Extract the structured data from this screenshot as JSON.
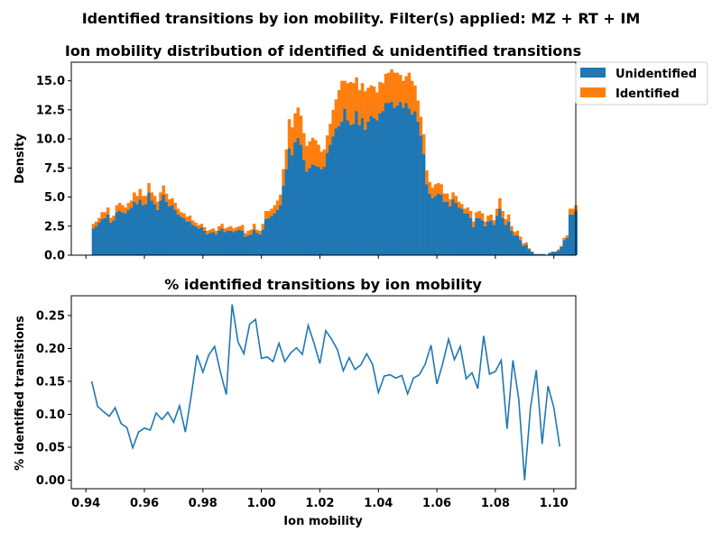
{
  "suptitle": "Identified transitions by ion mobility. Filter(s) applied: MZ + RT + IM",
  "colors": {
    "unidentified": "#1f77b4",
    "identified": "#ff7f0e",
    "line": "#1f77b4"
  },
  "chart_data": [
    {
      "type": "bar",
      "stacked": true,
      "title": "Ion mobility distribution of identified & unidentified transitions",
      "xlabel": "",
      "ylabel": "Density",
      "xlim": [
        0.935,
        1.1075
      ],
      "ylim": [
        0,
        16.6
      ],
      "yticks": [
        0.0,
        2.5,
        5.0,
        7.5,
        10.0,
        12.5,
        15.0
      ],
      "ytick_labels": [
        "0.0",
        "2.5",
        "5.0",
        "7.5",
        "10.0",
        "12.5",
        "15.0"
      ],
      "xticks": [
        0.94,
        0.96,
        0.98,
        1.0,
        1.02,
        1.04,
        1.06,
        1.08,
        1.1
      ],
      "xticks_labeled": false,
      "legend": "top-right outside",
      "bin_start": 0.942,
      "bin_width": 0.001,
      "series": [
        {
          "name": "Unidentified",
          "color_key": "unidentified",
          "values": [
            2.3,
            2.5,
            2.8,
            3.1,
            3.2,
            3.5,
            2.8,
            3.0,
            3.7,
            3.8,
            3.7,
            3.6,
            3.9,
            4.1,
            4.6,
            4.4,
            4.8,
            4.3,
            4.4,
            5.4,
            4.7,
            4.4,
            3.9,
            4.7,
            5.2,
            4.6,
            4.2,
            4.3,
            3.9,
            3.5,
            3.3,
            3.2,
            2.9,
            2.9,
            2.6,
            2.5,
            2.3,
            2.4,
            2.1,
            1.8,
            1.9,
            2.0,
            1.8,
            2.1,
            2.3,
            2.0,
            2.1,
            2.1,
            2.0,
            2.1,
            2.2,
            2.1,
            1.6,
            1.7,
            1.8,
            2.2,
            1.9,
            1.8,
            2.2,
            3.1,
            3.2,
            3.4,
            3.6,
            3.9,
            4.3,
            6.0,
            7.4,
            9.2,
            8.6,
            9.7,
            10.1,
            9.5,
            8.2,
            7.2,
            7.5,
            7.8,
            7.7,
            7.6,
            7.4,
            7.6,
            8.8,
            9.5,
            10.2,
            10.9,
            11.1,
            11.5,
            12.6,
            11.6,
            11.2,
            11.3,
            12.4,
            11.2,
            11.8,
            10.8,
            11.5,
            12.0,
            11.8,
            11.6,
            12.2,
            12.4,
            13.1,
            13.1,
            13.2,
            12.7,
            12.9,
            13.2,
            12.7,
            13.1,
            12.6,
            12.1,
            12.4,
            11.5,
            10.3,
            8.7,
            6.1,
            5.3,
            4.9,
            5.1,
            5.3,
            5.2,
            4.6,
            4.6,
            4.2,
            4.8,
            4.5,
            4.1,
            4.0,
            3.6,
            3.6,
            3.2,
            2.4,
            3.2,
            3.2,
            3.0,
            2.5,
            2.9,
            3.0,
            2.6,
            3.4,
            4.0,
            3.2,
            2.6,
            2.9,
            2.1,
            1.7,
            1.7,
            1.3,
            0.8,
            0.9,
            0.5,
            0.3,
            0.1,
            0.1,
            0.1,
            0.1,
            0.0,
            0.2,
            0.3,
            0.3,
            0.4,
            0.7,
            1.3,
            1.5,
            3.5,
            3.5,
            3.8
          ]
        },
        {
          "name": "Identified",
          "color_key": "identified",
          "values": [
            0.4,
            0.4,
            0.4,
            0.6,
            0.5,
            0.6,
            0.4,
            0.4,
            0.6,
            0.7,
            0.6,
            0.5,
            0.6,
            0.6,
            0.8,
            0.7,
            0.9,
            0.8,
            0.7,
            0.8,
            0.7,
            0.7,
            0.7,
            0.7,
            0.8,
            0.7,
            0.6,
            0.6,
            0.6,
            0.5,
            0.4,
            0.4,
            0.4,
            0.5,
            0.4,
            0.3,
            0.3,
            0.3,
            0.3,
            0.3,
            0.3,
            0.3,
            0.3,
            0.4,
            0.4,
            0.3,
            0.3,
            0.4,
            0.3,
            0.3,
            0.3,
            0.5,
            0.3,
            0.4,
            0.4,
            0.5,
            0.3,
            0.3,
            0.5,
            0.7,
            0.6,
            0.6,
            0.7,
            0.8,
            0.9,
            1.4,
            1.7,
            2.5,
            2.4,
            2.5,
            2.6,
            2.5,
            2.3,
            2.2,
            2.3,
            2.3,
            2.2,
            1.9,
            1.5,
            1.5,
            1.5,
            1.8,
            2.3,
            2.5,
            3.1,
            3.5,
            2.4,
            3.2,
            3.7,
            3.5,
            2.9,
            3.0,
            3.0,
            3.3,
            2.9,
            2.6,
            2.7,
            2.4,
            2.7,
            2.4,
            2.5,
            2.6,
            2.8,
            3.0,
            2.8,
            2.3,
            2.3,
            2.3,
            3.1,
            2.9,
            2.2,
            1.8,
            1.6,
            1.7,
            1.2,
            1.0,
            0.9,
            1.0,
            0.9,
            0.9,
            0.7,
            0.7,
            0.6,
            0.6,
            0.6,
            0.5,
            0.4,
            0.4,
            0.5,
            0.6,
            0.5,
            0.5,
            0.6,
            0.6,
            0.4,
            0.5,
            0.5,
            0.4,
            0.6,
            0.9,
            0.6,
            0.5,
            0.6,
            0.4,
            0.3,
            0.4,
            0.3,
            0.2,
            0.2,
            0.1,
            0.0,
            0.0,
            0.0,
            0.0,
            0.0,
            0.0,
            0.0,
            0.0,
            0.0,
            0.1,
            0.1,
            0.2,
            0.2,
            0.5,
            0.5,
            0.5
          ]
        }
      ]
    },
    {
      "type": "line",
      "title": "% identified transitions by ion mobility",
      "xlabel": "Ion mobility",
      "ylabel": "% identified transitions",
      "xlim": [
        0.935,
        1.1075
      ],
      "ylim": [
        -0.013,
        0.28
      ],
      "xticks": [
        0.94,
        0.96,
        0.98,
        1.0,
        1.02,
        1.04,
        1.06,
        1.08,
        1.1
      ],
      "xtick_labels": [
        "0.94",
        "0.96",
        "0.98",
        "1.00",
        "1.02",
        "1.04",
        "1.06",
        "1.08",
        "1.10"
      ],
      "yticks": [
        0.0,
        0.05,
        0.1,
        0.15,
        0.2,
        0.25
      ],
      "ytick_labels": [
        "0.00",
        "0.05",
        "0.10",
        "0.15",
        "0.20",
        "0.25"
      ],
      "series": [
        {
          "name": "",
          "color_key": "line",
          "x": [
            0.942,
            0.944,
            0.946,
            0.948,
            0.95,
            0.952,
            0.954,
            0.956,
            0.958,
            0.96,
            0.962,
            0.964,
            0.966,
            0.968,
            0.97,
            0.972,
            0.974,
            0.976,
            0.978,
            0.98,
            0.982,
            0.984,
            0.986,
            0.988,
            0.99,
            0.992,
            0.994,
            0.996,
            0.998,
            1.0,
            1.002,
            1.004,
            1.006,
            1.008,
            1.01,
            1.012,
            1.014,
            1.016,
            1.018,
            1.02,
            1.022,
            1.024,
            1.026,
            1.028,
            1.03,
            1.032,
            1.034,
            1.036,
            1.038,
            1.04,
            1.042,
            1.044,
            1.046,
            1.048,
            1.05,
            1.052,
            1.054,
            1.056,
            1.058,
            1.06,
            1.062,
            1.064,
            1.066,
            1.068,
            1.07,
            1.072,
            1.074,
            1.076,
            1.078,
            1.08,
            1.082,
            1.084,
            1.086,
            1.088,
            1.09,
            1.092,
            1.094,
            1.096,
            1.098,
            1.1,
            1.102
          ],
          "y": [
            0.15,
            0.112,
            0.104,
            0.097,
            0.11,
            0.086,
            0.08,
            0.049,
            0.073,
            0.079,
            0.076,
            0.102,
            0.092,
            0.103,
            0.088,
            0.113,
            0.073,
            0.128,
            0.19,
            0.164,
            0.19,
            0.203,
            0.164,
            0.13,
            0.267,
            0.21,
            0.192,
            0.237,
            0.244,
            0.185,
            0.187,
            0.18,
            0.208,
            0.18,
            0.193,
            0.201,
            0.191,
            0.235,
            0.208,
            0.177,
            0.227,
            0.214,
            0.198,
            0.166,
            0.186,
            0.168,
            0.175,
            0.192,
            0.176,
            0.133,
            0.158,
            0.16,
            0.155,
            0.159,
            0.131,
            0.155,
            0.16,
            0.176,
            0.205,
            0.146,
            0.177,
            0.214,
            0.183,
            0.203,
            0.154,
            0.163,
            0.139,
            0.219,
            0.161,
            0.165,
            0.182,
            0.078,
            0.182,
            0.123,
            0.0,
            0.11,
            0.167,
            0.055,
            0.143,
            0.11,
            0.051
          ]
        }
      ]
    }
  ]
}
